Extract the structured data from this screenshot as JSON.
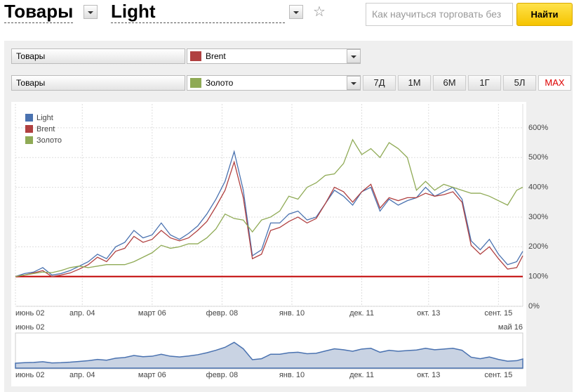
{
  "header": {
    "category": "Товары",
    "search_placeholder": "Как научиться торговать без",
    "search_button": "Найти"
  },
  "controls": {
    "category_rows": [
      "Товары",
      "Товары"
    ],
    "periods": [
      "7Д",
      "1М",
      "6М",
      "1Г",
      "5Л",
      "MAX"
    ],
    "selected_period": 5
  },
  "chart_data": {
    "type": "line",
    "x": [
      "2002-06",
      "2002-09",
      "2002-12",
      "2003-03",
      "2003-06",
      "2003-09",
      "2003-12",
      "2004-03",
      "2004-06",
      "2004-09",
      "2004-12",
      "2005-03",
      "2005-06",
      "2005-09",
      "2005-12",
      "2006-03",
      "2006-06",
      "2006-09",
      "2006-12",
      "2007-03",
      "2007-06",
      "2007-09",
      "2007-12",
      "2008-03",
      "2008-06",
      "2008-09",
      "2008-12",
      "2009-03",
      "2009-06",
      "2009-09",
      "2009-12",
      "2010-03",
      "2010-06",
      "2010-09",
      "2010-12",
      "2011-03",
      "2011-06",
      "2011-09",
      "2011-12",
      "2012-03",
      "2012-06",
      "2012-09",
      "2012-12",
      "2013-03",
      "2013-06",
      "2013-09",
      "2013-12",
      "2014-03",
      "2014-06",
      "2014-09",
      "2014-12",
      "2015-03",
      "2015-06",
      "2015-09",
      "2015-12",
      "2016-03",
      "2016-05"
    ],
    "series": [
      {
        "name": "Light",
        "color": "#4a72b0",
        "values": [
          100,
          110,
          115,
          130,
          105,
          110,
          120,
          135,
          150,
          175,
          160,
          200,
          215,
          255,
          230,
          240,
          280,
          240,
          225,
          245,
          270,
          310,
          360,
          420,
          520,
          390,
          170,
          190,
          280,
          280,
          310,
          320,
          290,
          300,
          345,
          390,
          370,
          340,
          385,
          400,
          320,
          360,
          340,
          355,
          365,
          400,
          370,
          385,
          400,
          360,
          220,
          190,
          225,
          175,
          140,
          150,
          185
        ]
      },
      {
        "name": "Brent",
        "color": "#b04040",
        "values": [
          100,
          105,
          112,
          120,
          100,
          105,
          112,
          125,
          140,
          165,
          150,
          185,
          195,
          235,
          215,
          225,
          255,
          230,
          220,
          230,
          255,
          285,
          335,
          390,
          485,
          365,
          160,
          175,
          255,
          265,
          285,
          300,
          280,
          295,
          345,
          400,
          385,
          350,
          385,
          410,
          330,
          365,
          355,
          365,
          365,
          380,
          370,
          375,
          385,
          350,
          205,
          175,
          200,
          160,
          125,
          130,
          170
        ]
      },
      {
        "name": "Золото",
        "color": "#8faa55",
        "values": [
          100,
          105,
          110,
          115,
          113,
          120,
          130,
          135,
          130,
          135,
          140,
          140,
          140,
          150,
          165,
          180,
          205,
          195,
          200,
          210,
          210,
          230,
          260,
          310,
          295,
          290,
          250,
          290,
          300,
          320,
          370,
          360,
          400,
          415,
          440,
          445,
          480,
          560,
          510,
          530,
          500,
          550,
          530,
          500,
          390,
          420,
          390,
          410,
          400,
          390,
          380,
          380,
          370,
          355,
          340,
          390,
          400
        ]
      }
    ],
    "xlim": [
      "2002-06",
      "2016-05"
    ],
    "xticks": [
      {
        "value": "2002-06",
        "label": "июнь 02"
      },
      {
        "value": "2004-04",
        "label": "апр. 04"
      },
      {
        "value": "2006-03",
        "label": "март 06"
      },
      {
        "value": "2008-02",
        "label": "февр. 08"
      },
      {
        "value": "2010-01",
        "label": "янв. 10"
      },
      {
        "value": "2011-12",
        "label": "дек. 11"
      },
      {
        "value": "2013-10",
        "label": "окт. 13"
      },
      {
        "value": "2015-09",
        "label": "сент. 15"
      }
    ],
    "ylim": [
      0,
      680
    ],
    "yticks": [
      {
        "value": 0,
        "label": "0%"
      },
      {
        "value": 100,
        "label": "100%"
      },
      {
        "value": 200,
        "label": "200%"
      },
      {
        "value": 300,
        "label": "300%"
      },
      {
        "value": 400,
        "label": "400%"
      },
      {
        "value": 500,
        "label": "500%"
      },
      {
        "value": 600,
        "label": "600%"
      }
    ],
    "grid": true,
    "legend": "top-left",
    "baseline": 100,
    "baseline_color": "#c00000",
    "navigator": {
      "end_label": "май 16",
      "color": "#4a72b0",
      "fill": "#c9d3e3"
    }
  }
}
